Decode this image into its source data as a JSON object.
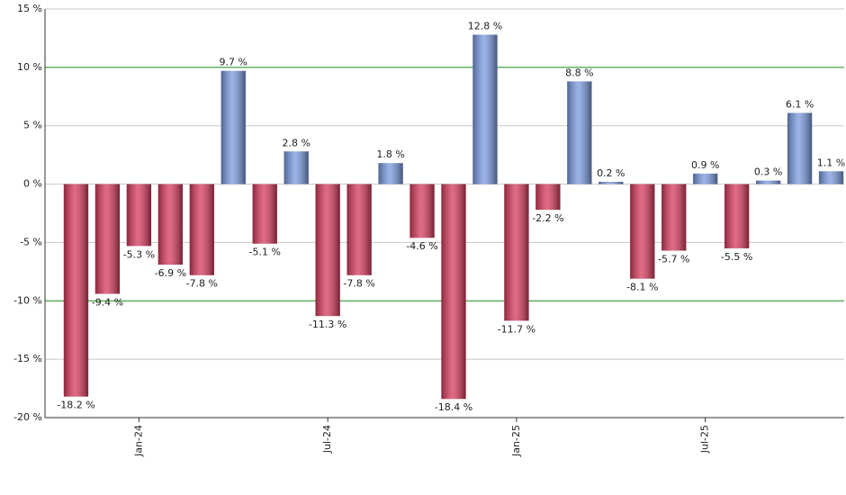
{
  "chart_data": {
    "type": "bar",
    "categories": [
      null,
      null,
      "Jan-24",
      null,
      null,
      null,
      null,
      null,
      "Jul-24",
      null,
      null,
      null,
      null,
      null,
      "Jan-25",
      null,
      null,
      null,
      null,
      null,
      "Jul-25",
      null,
      null,
      null,
      null
    ],
    "values": [
      -18.2,
      -9.4,
      -5.3,
      -6.9,
      -7.8,
      9.7,
      -5.1,
      2.8,
      -11.3,
      -7.8,
      1.8,
      -4.6,
      -18.4,
      12.8,
      -11.7,
      -2.2,
      8.8,
      0.2,
      -8.1,
      -5.7,
      0.9,
      -5.5,
      0.3,
      6.1,
      1.1
    ],
    "value_labels": [
      "-18.2 %",
      "-9.4 %",
      "-5.3 %",
      "-6.9 %",
      "-7.8 %",
      "9.7 %",
      "-5.1 %",
      "2.8 %",
      "-11.3 %",
      "-7.8 %",
      "1.8 %",
      "-4.6 %",
      "-18.4 %",
      "12.8 %",
      "-11.7 %",
      "-2.2 %",
      "8.8 %",
      "0.2 %",
      "-8.1 %",
      "-5.7 %",
      "0.9 %",
      "-5.5 %",
      "0.3 %",
      "6.1 %",
      "1.1 %"
    ],
    "positive_color": "#7a9be0",
    "negative_color": "#d83a5c",
    "ylim": [
      -20,
      15
    ],
    "yticks": [
      {
        "value": -20,
        "label": "-20 %"
      },
      {
        "value": -15,
        "label": "-15 %"
      },
      {
        "value": -10,
        "label": "-10 %"
      },
      {
        "value": -5,
        "label": "-5 %"
      },
      {
        "value": 0,
        "label": "0 %"
      },
      {
        "value": 5,
        "label": "5 %"
      },
      {
        "value": 10,
        "label": "10 %"
      },
      {
        "value": 15,
        "label": "15 %"
      }
    ],
    "grid": true,
    "grid_color": "#c8c8c8",
    "highlight_lines": {
      "values": [
        -10,
        10
      ],
      "color": "#1a8a1a"
    }
  }
}
